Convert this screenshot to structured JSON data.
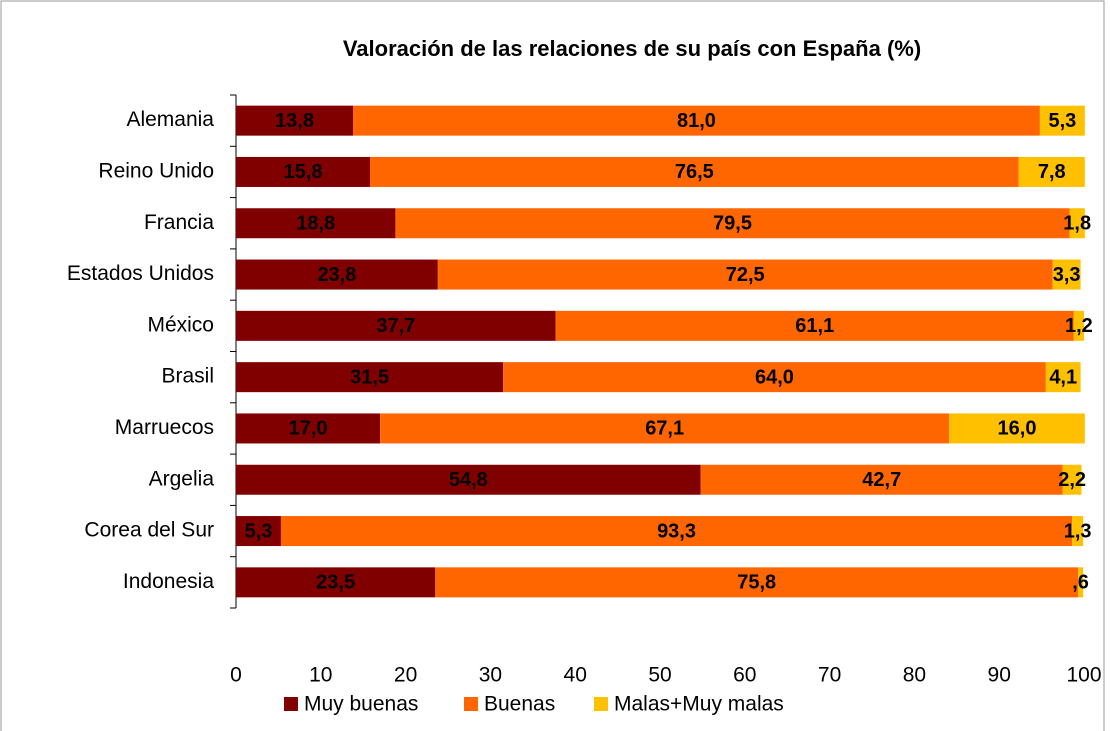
{
  "chart_data": {
    "type": "stacked-bar-horizontal",
    "title": "Valoración de las relaciones de su país con España (%)",
    "categories": [
      "Alemania",
      "Reino Unido",
      "Francia",
      "Estados Unidos",
      "México",
      "Brasil",
      "Marruecos",
      "Argelia",
      "Corea del Sur",
      "Indonesia"
    ],
    "series": [
      {
        "name": "Muy buenas",
        "color": "#800000",
        "values": [
          13.8,
          15.8,
          18.8,
          23.8,
          37.7,
          31.5,
          17.0,
          54.8,
          5.3,
          23.5
        ],
        "value_labels": [
          "13,8",
          "15,8",
          "18,8",
          "23,8",
          "37,7",
          "31,5",
          "17,0",
          "54,8",
          "5,3",
          "23,5"
        ]
      },
      {
        "name": "Buenas",
        "color": "#ff6600",
        "values": [
          81.0,
          76.5,
          79.5,
          72.5,
          61.1,
          64.0,
          67.1,
          42.7,
          93.3,
          75.8
        ],
        "value_labels": [
          "81,0",
          "76,5",
          "79,5",
          "72,5",
          "61,1",
          "64,0",
          "67,1",
          "42,7",
          "93,3",
          "75,8"
        ]
      },
      {
        "name": "Malas+Muy malas",
        "color": "#ffc000",
        "values": [
          5.3,
          7.8,
          1.8,
          3.3,
          1.2,
          4.1,
          16.0,
          2.2,
          1.3,
          0.6
        ],
        "value_labels": [
          "5,3",
          "7,8",
          "1,8",
          "3,3",
          "1,2",
          "4,1",
          "16,0",
          "2,2",
          "1,3",
          ",6"
        ]
      }
    ],
    "xlim": [
      0,
      100
    ],
    "xticks": [
      0,
      10,
      20,
      30,
      40,
      50,
      60,
      70,
      80,
      90,
      100
    ],
    "legend": "bottom"
  }
}
